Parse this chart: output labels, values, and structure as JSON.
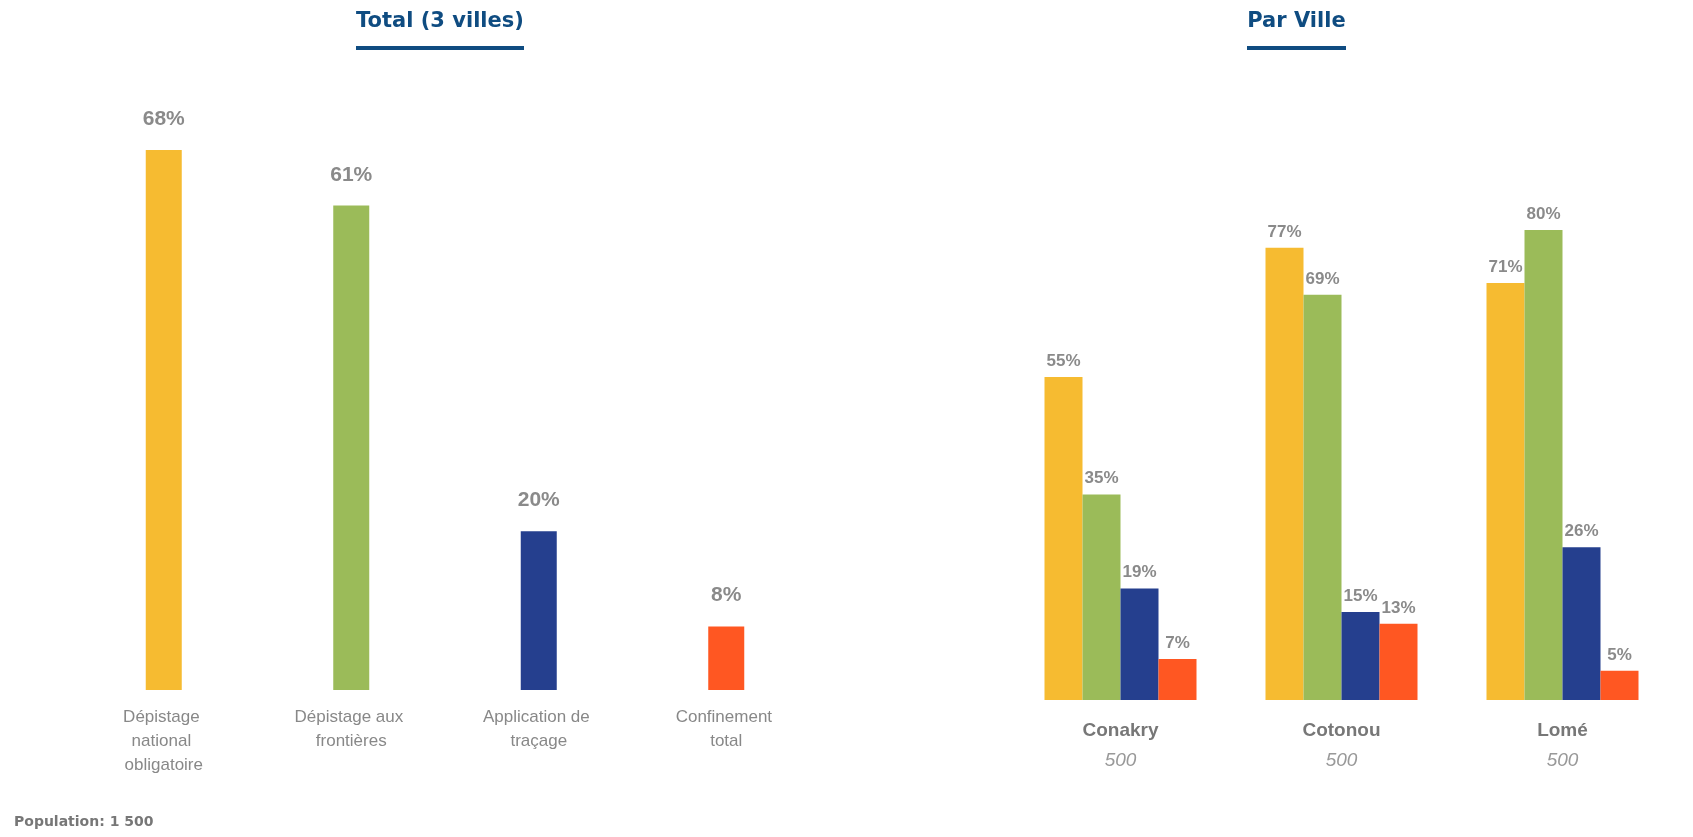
{
  "chart_data": [
    {
      "type": "bar",
      "title": "Total (3 villes)",
      "categories": [
        "Dépistage national obligatoire",
        "Dépistage aux frontières",
        "Application de traçage",
        "Confinement total"
      ],
      "values": [
        68,
        61,
        20,
        8
      ],
      "colors": [
        "#f6bb31",
        "#9bbb59",
        "#253f8e",
        "#ff5722"
      ],
      "value_labels": [
        "68%",
        "61%",
        "20%",
        "8%"
      ],
      "grid": false,
      "annotations": [
        "Population: 1 500"
      ]
    },
    {
      "type": "bar",
      "title": "Par Ville",
      "categories": [
        "Conakry\n500",
        "Cotonou\n500",
        "Lomé\n500"
      ],
      "series": [
        {
          "color": "#f6bb31",
          "values": [
            55,
            77,
            71
          ],
          "value_labels": [
            "55%",
            "77%",
            "71%"
          ]
        },
        {
          "color": "#9bbb59",
          "values": [
            35,
            69,
            80
          ],
          "value_labels": [
            "35%",
            "69%",
            "80%"
          ]
        },
        {
          "color": "#253f8e",
          "values": [
            19,
            15,
            26
          ],
          "value_labels": [
            "19%",
            "15%",
            "26%"
          ]
        },
        {
          "color": "#ff5722",
          "values": [
            7,
            13,
            5
          ],
          "value_labels": [
            "7%",
            "13%",
            "5%"
          ]
        }
      ],
      "grid": false
    }
  ]
}
